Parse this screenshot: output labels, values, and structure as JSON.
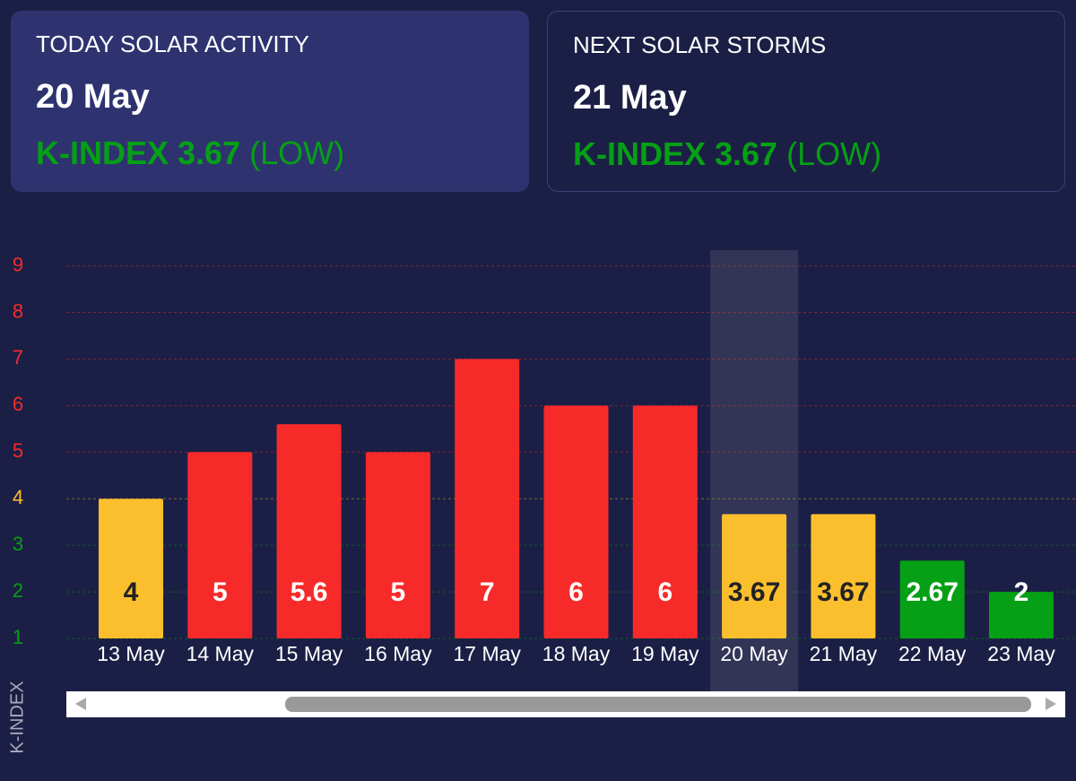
{
  "cards": [
    {
      "title": "TODAY SOLAR ACTIVITY",
      "date": "20 May",
      "index": "K-INDEX 3.67",
      "level": "(LOW)"
    },
    {
      "title": "NEXT SOLAR STORMS",
      "date": "21 May",
      "index": "K-INDEX 3.67",
      "level": "(LOW)"
    }
  ],
  "chart_data": {
    "type": "bar",
    "y_label": "K-INDEX",
    "categories": [
      "13 May",
      "14 May",
      "15 May",
      "16 May",
      "17 May",
      "18 May",
      "19 May",
      "20 May",
      "21 May",
      "22 May",
      "23 May"
    ],
    "values": [
      4,
      5,
      5.6,
      5,
      7,
      6,
      6,
      3.67,
      3.67,
      2.67,
      2
    ],
    "colors": [
      "#fbbf2e",
      "#f72a2a",
      "#f72a2a",
      "#f72a2a",
      "#f72a2a",
      "#f72a2a",
      "#f72a2a",
      "#fbbf2e",
      "#fbbf2e",
      "#05a015",
      "#05a015"
    ],
    "value_label_colors": [
      "#222222",
      "#ffffff",
      "#ffffff",
      "#ffffff",
      "#ffffff",
      "#ffffff",
      "#ffffff",
      "#222222",
      "#222222",
      "#ffffff",
      "#ffffff"
    ],
    "ylim": [
      1,
      9.3
    ],
    "yticks": [
      1,
      2,
      3,
      4,
      5,
      6,
      7,
      8,
      9
    ],
    "ytick_colors": [
      "#05a015",
      "#05a015",
      "#05a015",
      "#fbbf2e",
      "#f72a2a",
      "#f72a2a",
      "#f72a2a",
      "#f72a2a",
      "#f72a2a"
    ],
    "grid": true,
    "highlight_index": 7
  }
}
